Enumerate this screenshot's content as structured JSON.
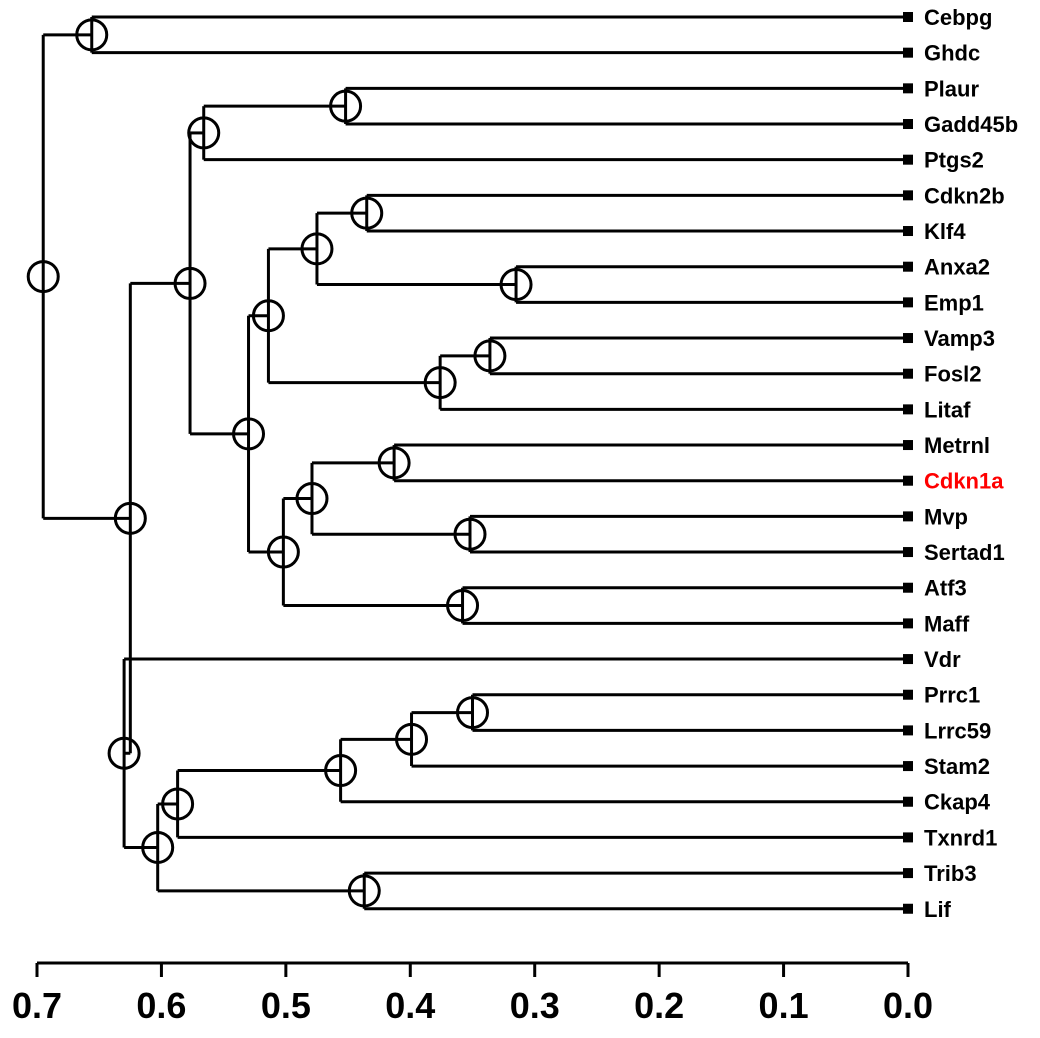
{
  "chart_data": {
    "type": "dendrogram",
    "orientation": "horizontal-right",
    "axis": {
      "xlim": [
        0.7,
        0.0
      ],
      "ticks": [
        0.7,
        0.6,
        0.5,
        0.4,
        0.3,
        0.2,
        0.1,
        0.0
      ],
      "tick_labels": [
        "0.7",
        "0.6",
        "0.5",
        "0.4",
        "0.3",
        "0.2",
        "0.1",
        "0.0"
      ]
    },
    "leaves": [
      {
        "name": "Cebpg",
        "highlight": false
      },
      {
        "name": "Ghdc",
        "highlight": false
      },
      {
        "name": "Plaur",
        "highlight": false
      },
      {
        "name": "Gadd45b",
        "highlight": false
      },
      {
        "name": "Ptgs2",
        "highlight": false
      },
      {
        "name": "Cdkn2b",
        "highlight": false
      },
      {
        "name": "Klf4",
        "highlight": false
      },
      {
        "name": "Anxa2",
        "highlight": false
      },
      {
        "name": "Emp1",
        "highlight": false
      },
      {
        "name": "Vamp3",
        "highlight": false
      },
      {
        "name": "Fosl2",
        "highlight": false
      },
      {
        "name": "Litaf",
        "highlight": false
      },
      {
        "name": "Metrnl",
        "highlight": false
      },
      {
        "name": "Cdkn1a",
        "highlight": true
      },
      {
        "name": "Mvp",
        "highlight": false
      },
      {
        "name": "Sertad1",
        "highlight": false
      },
      {
        "name": "Atf3",
        "highlight": false
      },
      {
        "name": "Maff",
        "highlight": false
      },
      {
        "name": "Vdr",
        "highlight": false
      },
      {
        "name": "Prrc1",
        "highlight": false
      },
      {
        "name": "Lrrc59",
        "highlight": false
      },
      {
        "name": "Stam2",
        "highlight": false
      },
      {
        "name": "Ckap4",
        "highlight": false
      },
      {
        "name": "Txnrd1",
        "highlight": false
      },
      {
        "name": "Trib3",
        "highlight": false
      },
      {
        "name": "Lif",
        "highlight": false
      }
    ],
    "merges": [
      {
        "id": "m_cebpg_ghdc",
        "height": 0.656,
        "children": [
          "Cebpg",
          "Ghdc"
        ]
      },
      {
        "id": "m_plaur_gadd",
        "height": 0.452,
        "children": [
          "Plaur",
          "Gadd45b"
        ]
      },
      {
        "id": "m_ptgs",
        "height": 0.566,
        "children": [
          "m_plaur_gadd",
          "Ptgs2"
        ]
      },
      {
        "id": "m_cdkn2b_klf4",
        "height": 0.435,
        "children": [
          "Cdkn2b",
          "Klf4"
        ]
      },
      {
        "id": "m_anxa2_emp1",
        "height": 0.315,
        "children": [
          "Anxa2",
          "Emp1"
        ]
      },
      {
        "id": "m_k",
        "height": 0.475,
        "children": [
          "m_cdkn2b_klf4",
          "m_anxa2_emp1"
        ]
      },
      {
        "id": "m_vamp3_fosl2",
        "height": 0.336,
        "children": [
          "Vamp3",
          "Fosl2"
        ]
      },
      {
        "id": "m_litaf",
        "height": 0.376,
        "children": [
          "m_vamp3_fosl2",
          "Litaf"
        ]
      },
      {
        "id": "m_kl",
        "height": 0.514,
        "children": [
          "m_k",
          "m_litaf"
        ]
      },
      {
        "id": "m_metrnl_cdkn1a",
        "height": 0.413,
        "children": [
          "Metrnl",
          "Cdkn1a"
        ]
      },
      {
        "id": "m_mvp_sertad1",
        "height": 0.352,
        "children": [
          "Mvp",
          "Sertad1"
        ]
      },
      {
        "id": "m_ms",
        "height": 0.479,
        "children": [
          "m_metrnl_cdkn1a",
          "m_mvp_sertad1"
        ]
      },
      {
        "id": "m_atf3_maff",
        "height": 0.358,
        "children": [
          "Atf3",
          "Maff"
        ]
      },
      {
        "id": "m_msa",
        "height": 0.502,
        "children": [
          "m_ms",
          "m_atf3_maff"
        ]
      },
      {
        "id": "m_klm",
        "height": 0.53,
        "children": [
          "m_kl",
          "m_msa"
        ]
      },
      {
        "id": "m_big",
        "height": 0.577,
        "children": [
          "m_ptgs",
          "m_klm"
        ]
      },
      {
        "id": "m_prrc1_lrrc59",
        "height": 0.35,
        "children": [
          "Prrc1",
          "Lrrc59"
        ]
      },
      {
        "id": "m_stam2",
        "height": 0.399,
        "children": [
          "m_prrc1_lrrc59",
          "Stam2"
        ]
      },
      {
        "id": "m_ckap4",
        "height": 0.456,
        "children": [
          "m_stam2",
          "Ckap4"
        ]
      },
      {
        "id": "m_txnrd1",
        "height": 0.587,
        "children": [
          "m_ckap4",
          "Txnrd1"
        ]
      },
      {
        "id": "m_trib3_lif",
        "height": 0.437,
        "children": [
          "Trib3",
          "Lif"
        ]
      },
      {
        "id": "m_bottom",
        "height": 0.603,
        "children": [
          "m_txnrd1",
          "m_trib3_lif"
        ]
      },
      {
        "id": "m_vdr_bottom",
        "height": 0.63,
        "children": [
          "Vdr",
          "m_bottom"
        ]
      },
      {
        "id": "m_mid",
        "height": 0.625,
        "children": [
          "m_big",
          "m_vdr_bottom"
        ]
      },
      {
        "id": "m_root",
        "height": 0.695,
        "children": [
          "m_cebpg_ghdc",
          "m_mid"
        ]
      }
    ],
    "colors": {
      "line": "#000000",
      "highlight": "#ff0000"
    }
  }
}
